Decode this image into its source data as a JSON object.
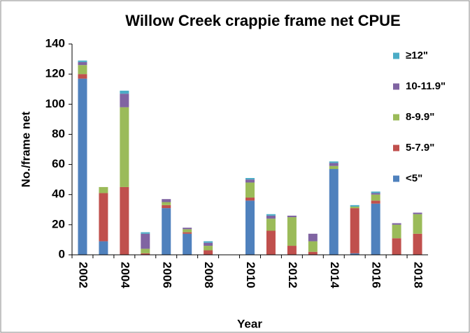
{
  "chart_data": {
    "type": "stacked_bar",
    "title": "Willow Creek crappie frame net CPUE",
    "x_label": "Year",
    "y_label": "No./frame net",
    "categories": [
      "2002",
      null,
      "2004",
      null,
      "2006",
      null,
      "2008",
      null,
      "2010",
      null,
      "2012",
      null,
      "2014",
      null,
      "2016",
      null,
      "2018"
    ],
    "series": [
      {
        "name": "<5\"",
        "color": "#4f81bd",
        "values": [
          117,
          9,
          0,
          0,
          31,
          14,
          0,
          0,
          36,
          0,
          0,
          0,
          57,
          1,
          34,
          0,
          0
        ]
      },
      {
        "name": "5-7.9\"",
        "color": "#c0504d",
        "values": [
          3,
          32,
          45,
          1,
          2,
          1,
          3,
          0,
          2,
          16,
          6,
          2,
          0,
          30,
          2,
          11,
          14
        ]
      },
      {
        "name": "8-9.9\"",
        "color": "#9bbb59",
        "values": [
          6,
          4,
          53,
          3,
          2,
          2,
          3,
          0,
          10,
          8,
          19,
          7,
          2,
          1,
          4,
          9,
          13
        ]
      },
      {
        "name": "10-11.9\"",
        "color": "#8064a2",
        "values": [
          2,
          0,
          9,
          10,
          2,
          1,
          2,
          0,
          2,
          2,
          1,
          5,
          2,
          0,
          1,
          1,
          1
        ]
      },
      {
        "name": "≥12\"",
        "color": "#4bacc6",
        "values": [
          1,
          0,
          2,
          1,
          0,
          0,
          1,
          0,
          1,
          1,
          0,
          0,
          1,
          1,
          1,
          0,
          0
        ]
      }
    ],
    "ylim": [
      0,
      140
    ],
    "yticks": [
      0,
      20,
      40,
      60,
      80,
      100,
      120,
      140
    ],
    "grid": false,
    "legend": "right"
  }
}
